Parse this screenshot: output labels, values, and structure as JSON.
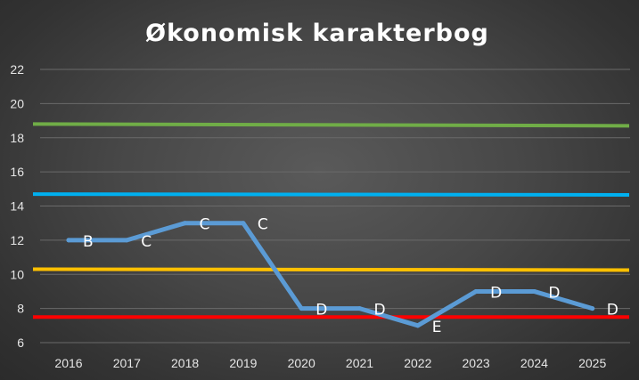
{
  "chart_data": {
    "type": "line",
    "title": "Økonomisk karakterbog",
    "x": [
      "2016",
      "2017",
      "2018",
      "2019",
      "2020",
      "2021",
      "2022",
      "2023",
      "2024",
      "2025"
    ],
    "ylim": [
      6,
      22
    ],
    "yticks": [
      6,
      8,
      10,
      12,
      14,
      16,
      18,
      20,
      22
    ],
    "grid": true,
    "series": [
      {
        "color": "#5b9bd5",
        "values": [
          12,
          12,
          13,
          13,
          8,
          8,
          7,
          9,
          9,
          8
        ],
        "data_labels": [
          "B",
          "C",
          "C",
          "C",
          "D",
          "D",
          "E",
          "D",
          "D",
          "D"
        ]
      }
    ],
    "reference_lines": [
      {
        "y_start": 18.8,
        "y_end": 18.7,
        "color": "#70ad47"
      },
      {
        "y_start": 14.7,
        "y_end": 14.65,
        "color": "#00b0f0"
      },
      {
        "y_start": 10.3,
        "y_end": 10.25,
        "color": "#ffc000"
      },
      {
        "y_start": 7.5,
        "y_end": 7.5,
        "color": "#ff0000"
      }
    ]
  }
}
